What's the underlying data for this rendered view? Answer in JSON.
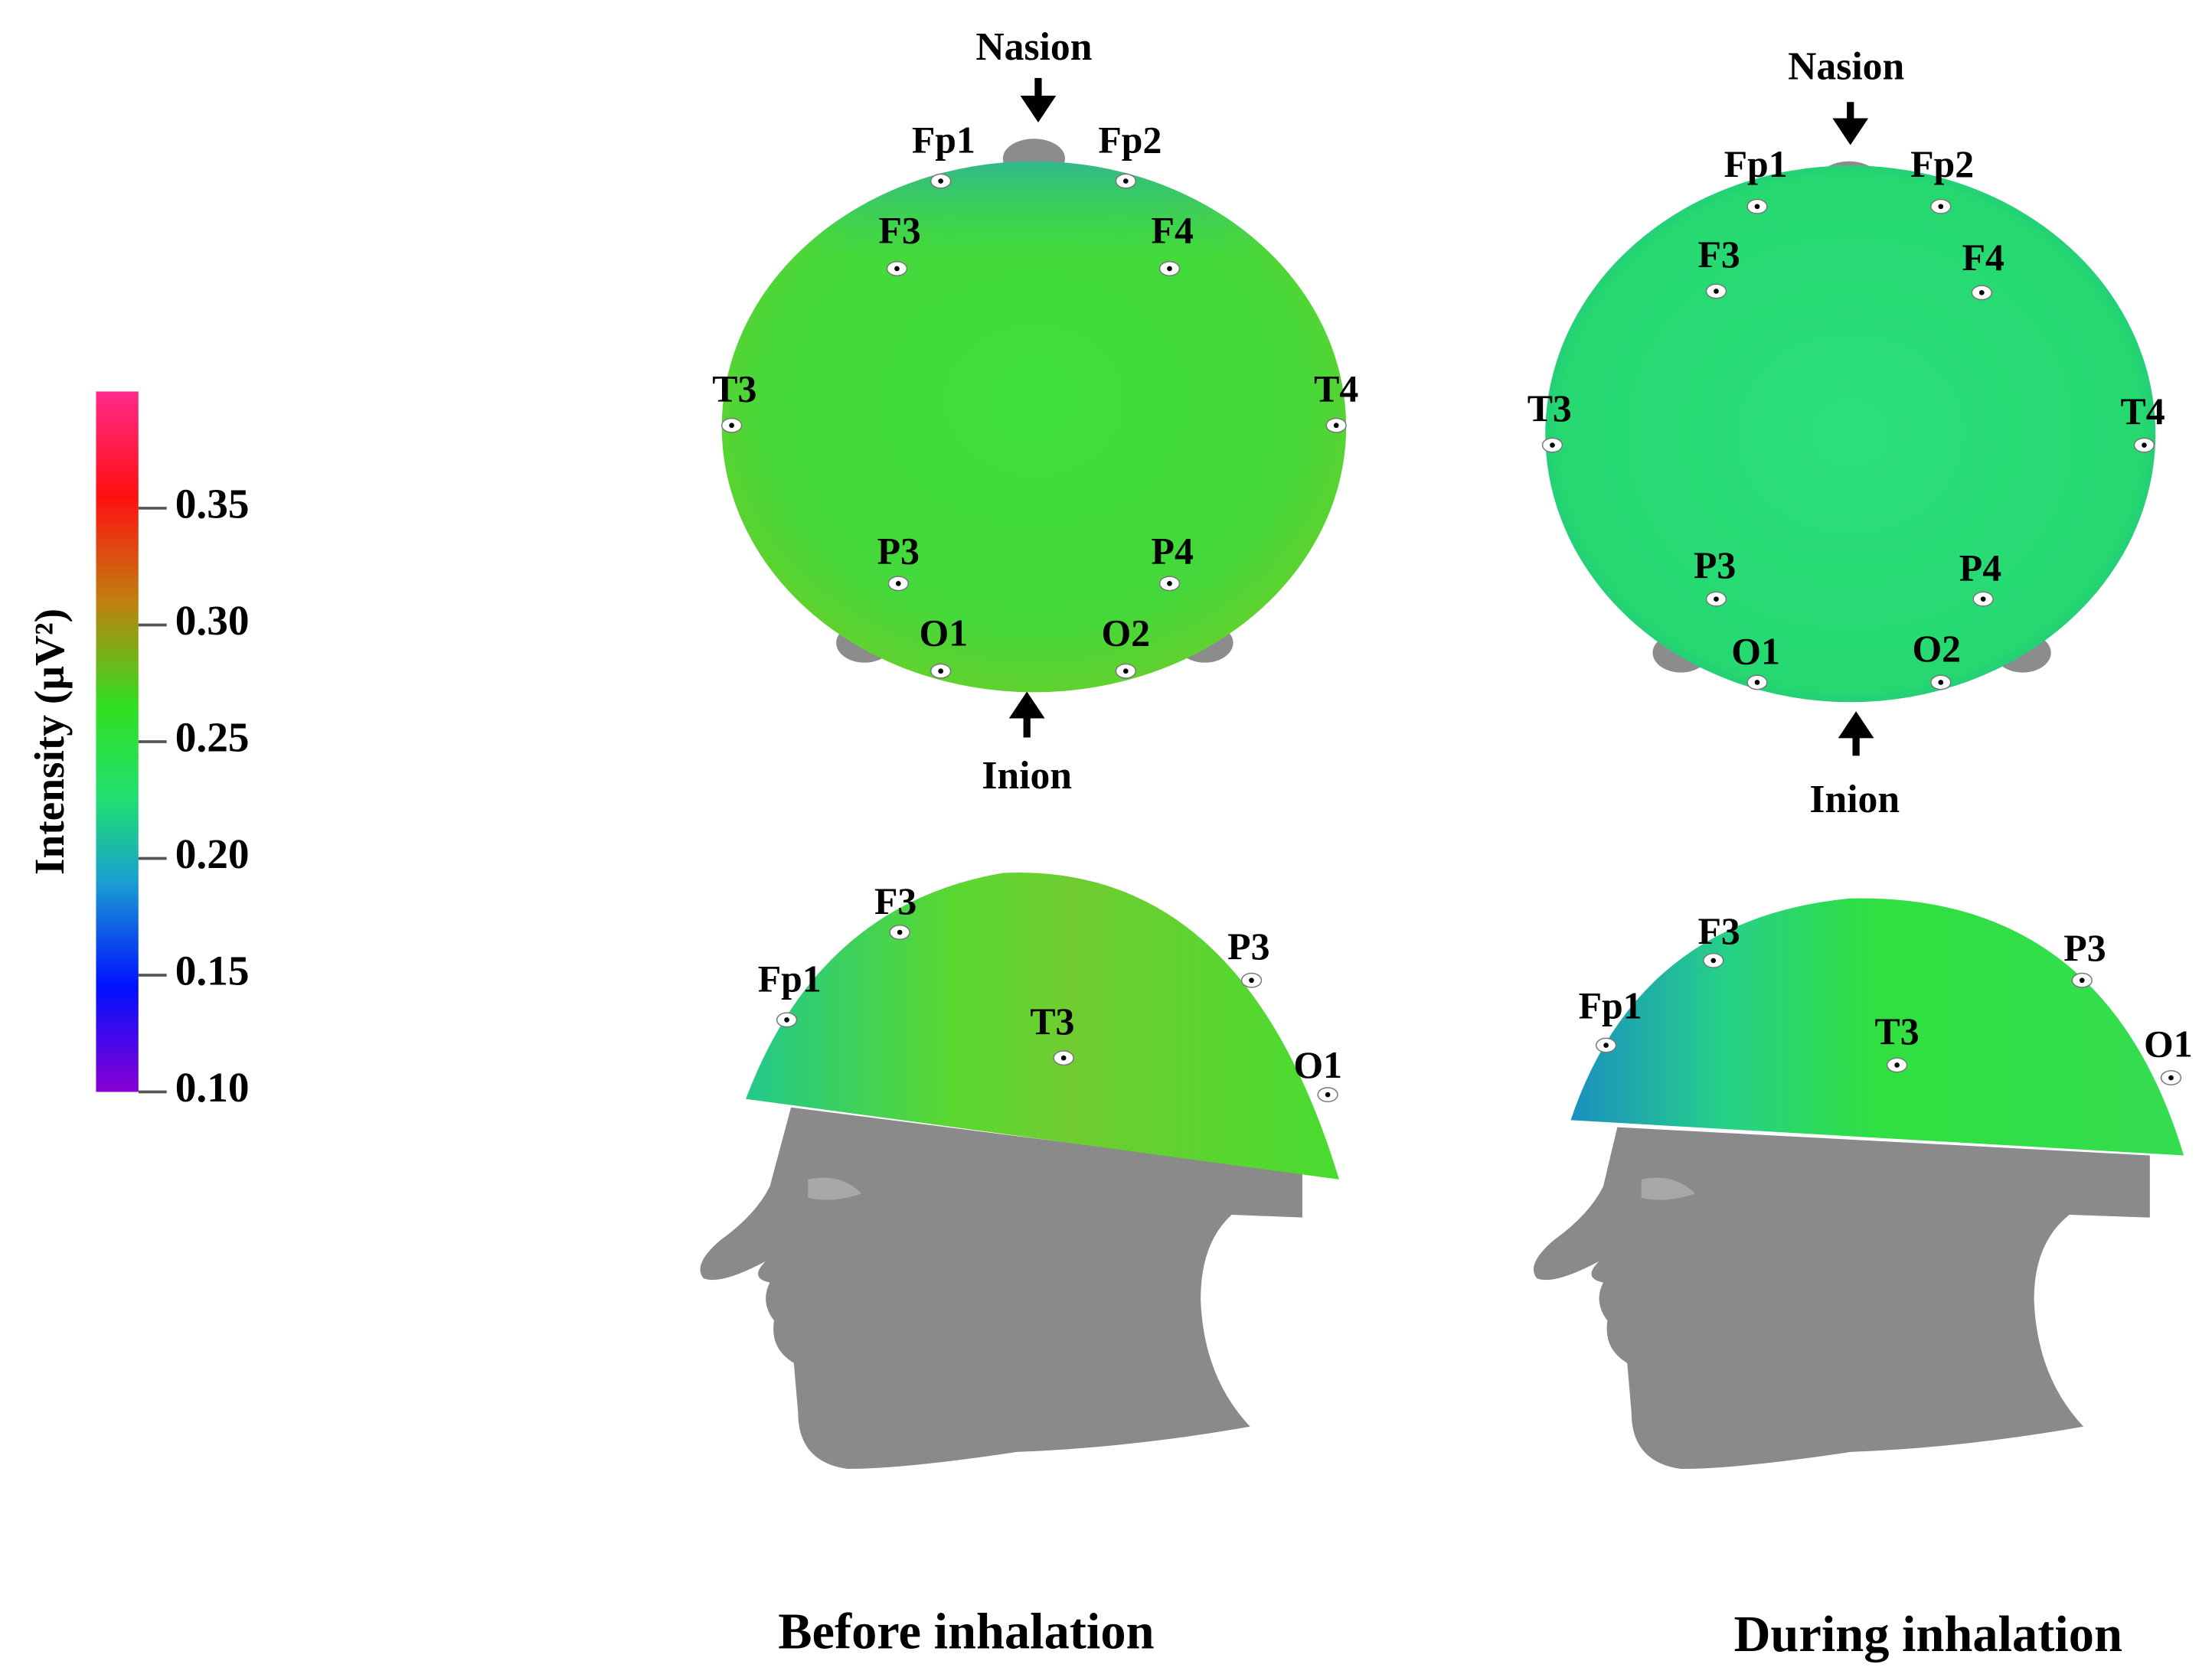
{
  "colorbar": {
    "label": "Intensity (µV²)",
    "lim": [
      0.1,
      0.4
    ],
    "ticks": [
      {
        "value": 0.1,
        "label": "0.10"
      },
      0.15,
      {
        "value": 0.2,
        "label": "0.20"
      },
      0.25,
      {
        "value": 0.3,
        "label": "0.30"
      },
      0.35
    ]
  },
  "panels": [
    {
      "caption": "Before inhalation",
      "top_view": {
        "nasion": "Nasion",
        "inion": "Inion",
        "electrodes": [
          "Fp1",
          "Fp2",
          "F3",
          "F4",
          "T3",
          "T4",
          "P3",
          "P4",
          "O1",
          "O2"
        ]
      },
      "side_view": {
        "electrodes": [
          "Fp1",
          "F3",
          "T3",
          "P3",
          "O1"
        ]
      }
    },
    {
      "caption": "During inhalation",
      "top_view": {
        "nasion": "Nasion",
        "inion": "Inion",
        "electrodes": [
          "Fp1",
          "Fp2",
          "F3",
          "F4",
          "T3",
          "T4",
          "P3",
          "P4",
          "O1",
          "O2"
        ]
      },
      "side_view": {
        "electrodes": [
          "Fp1",
          "F3",
          "T3",
          "P3",
          "O1"
        ]
      }
    }
  ]
}
